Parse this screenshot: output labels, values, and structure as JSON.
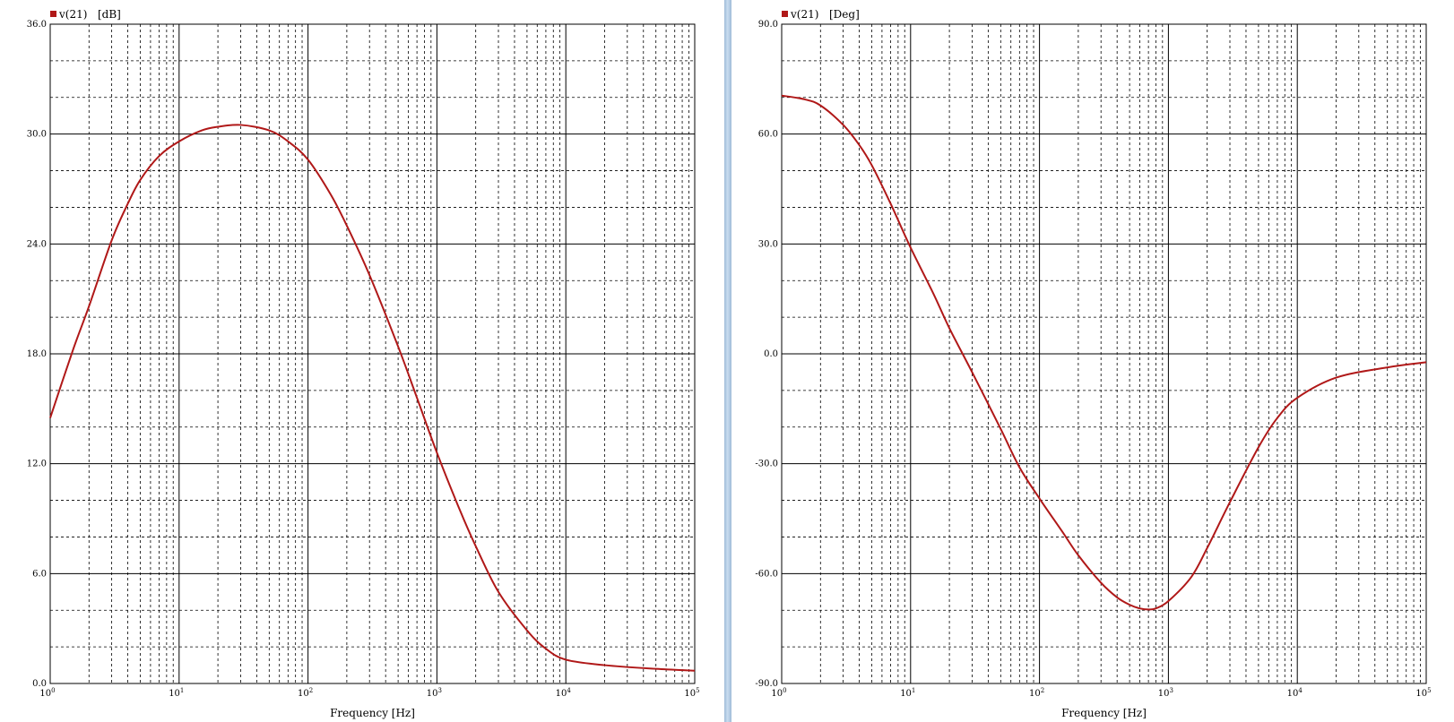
{
  "colors": {
    "trace": "#b01818",
    "grid_major": "#000000",
    "grid_minor": "#000000",
    "background": "#ffffff",
    "divider": "#b7cde5"
  },
  "chart_data": [
    {
      "type": "line",
      "legend": {
        "series": "v(21)",
        "unit": "[dB]",
        "placement": "top-left"
      },
      "xlabel": "Frequency [Hz]",
      "xscale": "log",
      "xlim": [
        1,
        100000
      ],
      "ylim": [
        0,
        36
      ],
      "x_ticks": [
        {
          "base": "10",
          "exp": "0"
        },
        {
          "base": "10",
          "exp": "1"
        },
        {
          "base": "10",
          "exp": "2"
        },
        {
          "base": "10",
          "exp": "3"
        },
        {
          "base": "10",
          "exp": "4"
        },
        {
          "base": "10",
          "exp": "5"
        }
      ],
      "y_ticks": [
        "0.0",
        "6.0",
        "12.0",
        "18.0",
        "24.0",
        "30.0",
        "36.0"
      ],
      "y_minor_step": 2,
      "grid": true,
      "series": [
        {
          "x": [
            1,
            1.5,
            2,
            3,
            4,
            5,
            7,
            10,
            15,
            20,
            30,
            50,
            70,
            100,
            150,
            200,
            300,
            500,
            700,
            1000,
            1500,
            2000,
            3000,
            5000,
            7000,
            10000,
            20000,
            50000,
            100000
          ],
          "y": [
            14.5,
            18.2,
            20.6,
            24.2,
            26.2,
            27.5,
            28.8,
            29.6,
            30.2,
            30.4,
            30.5,
            30.2,
            29.6,
            28.6,
            26.7,
            25.0,
            22.3,
            18.4,
            15.6,
            12.6,
            9.5,
            7.5,
            5.0,
            2.9,
            1.9,
            1.3,
            1.0,
            0.8,
            0.7
          ]
        }
      ]
    },
    {
      "type": "line",
      "legend": {
        "series": "v(21)",
        "unit": "[Deg]",
        "placement": "top-left"
      },
      "xlabel": "Frequency [Hz]",
      "xscale": "log",
      "xlim": [
        1,
        100000
      ],
      "ylim": [
        -90,
        90
      ],
      "x_ticks": [
        {
          "base": "10",
          "exp": "0"
        },
        {
          "base": "10",
          "exp": "1"
        },
        {
          "base": "10",
          "exp": "2"
        },
        {
          "base": "10",
          "exp": "3"
        },
        {
          "base": "10",
          "exp": "4"
        },
        {
          "base": "10",
          "exp": "5"
        }
      ],
      "y_ticks": [
        "-90.0",
        "-60.0",
        "-30.0",
        "0.0",
        "30.0",
        "60.0",
        "90.0"
      ],
      "y_minor_step": 10,
      "grid": true,
      "series": [
        {
          "x": [
            1,
            1.5,
            2,
            3,
            4,
            5,
            7,
            10,
            15,
            20,
            30,
            50,
            70,
            100,
            150,
            200,
            300,
            400,
            500,
            600,
            700,
            800,
            1000,
            1500,
            2000,
            3000,
            5000,
            7000,
            10000,
            20000,
            50000,
            100000
          ],
          "y": [
            70.5,
            69.5,
            67.8,
            62.5,
            57.0,
            51.5,
            41.0,
            29.0,
            16.5,
            7.0,
            -5.0,
            -20.5,
            -31.0,
            -39.5,
            -48.5,
            -55.0,
            -62.5,
            -66.5,
            -68.5,
            -69.5,
            -69.8,
            -69.5,
            -67.5,
            -61.0,
            -53.0,
            -40.5,
            -25.5,
            -17.5,
            -12.0,
            -6.5,
            -3.7,
            -2.3
          ]
        }
      ]
    }
  ]
}
